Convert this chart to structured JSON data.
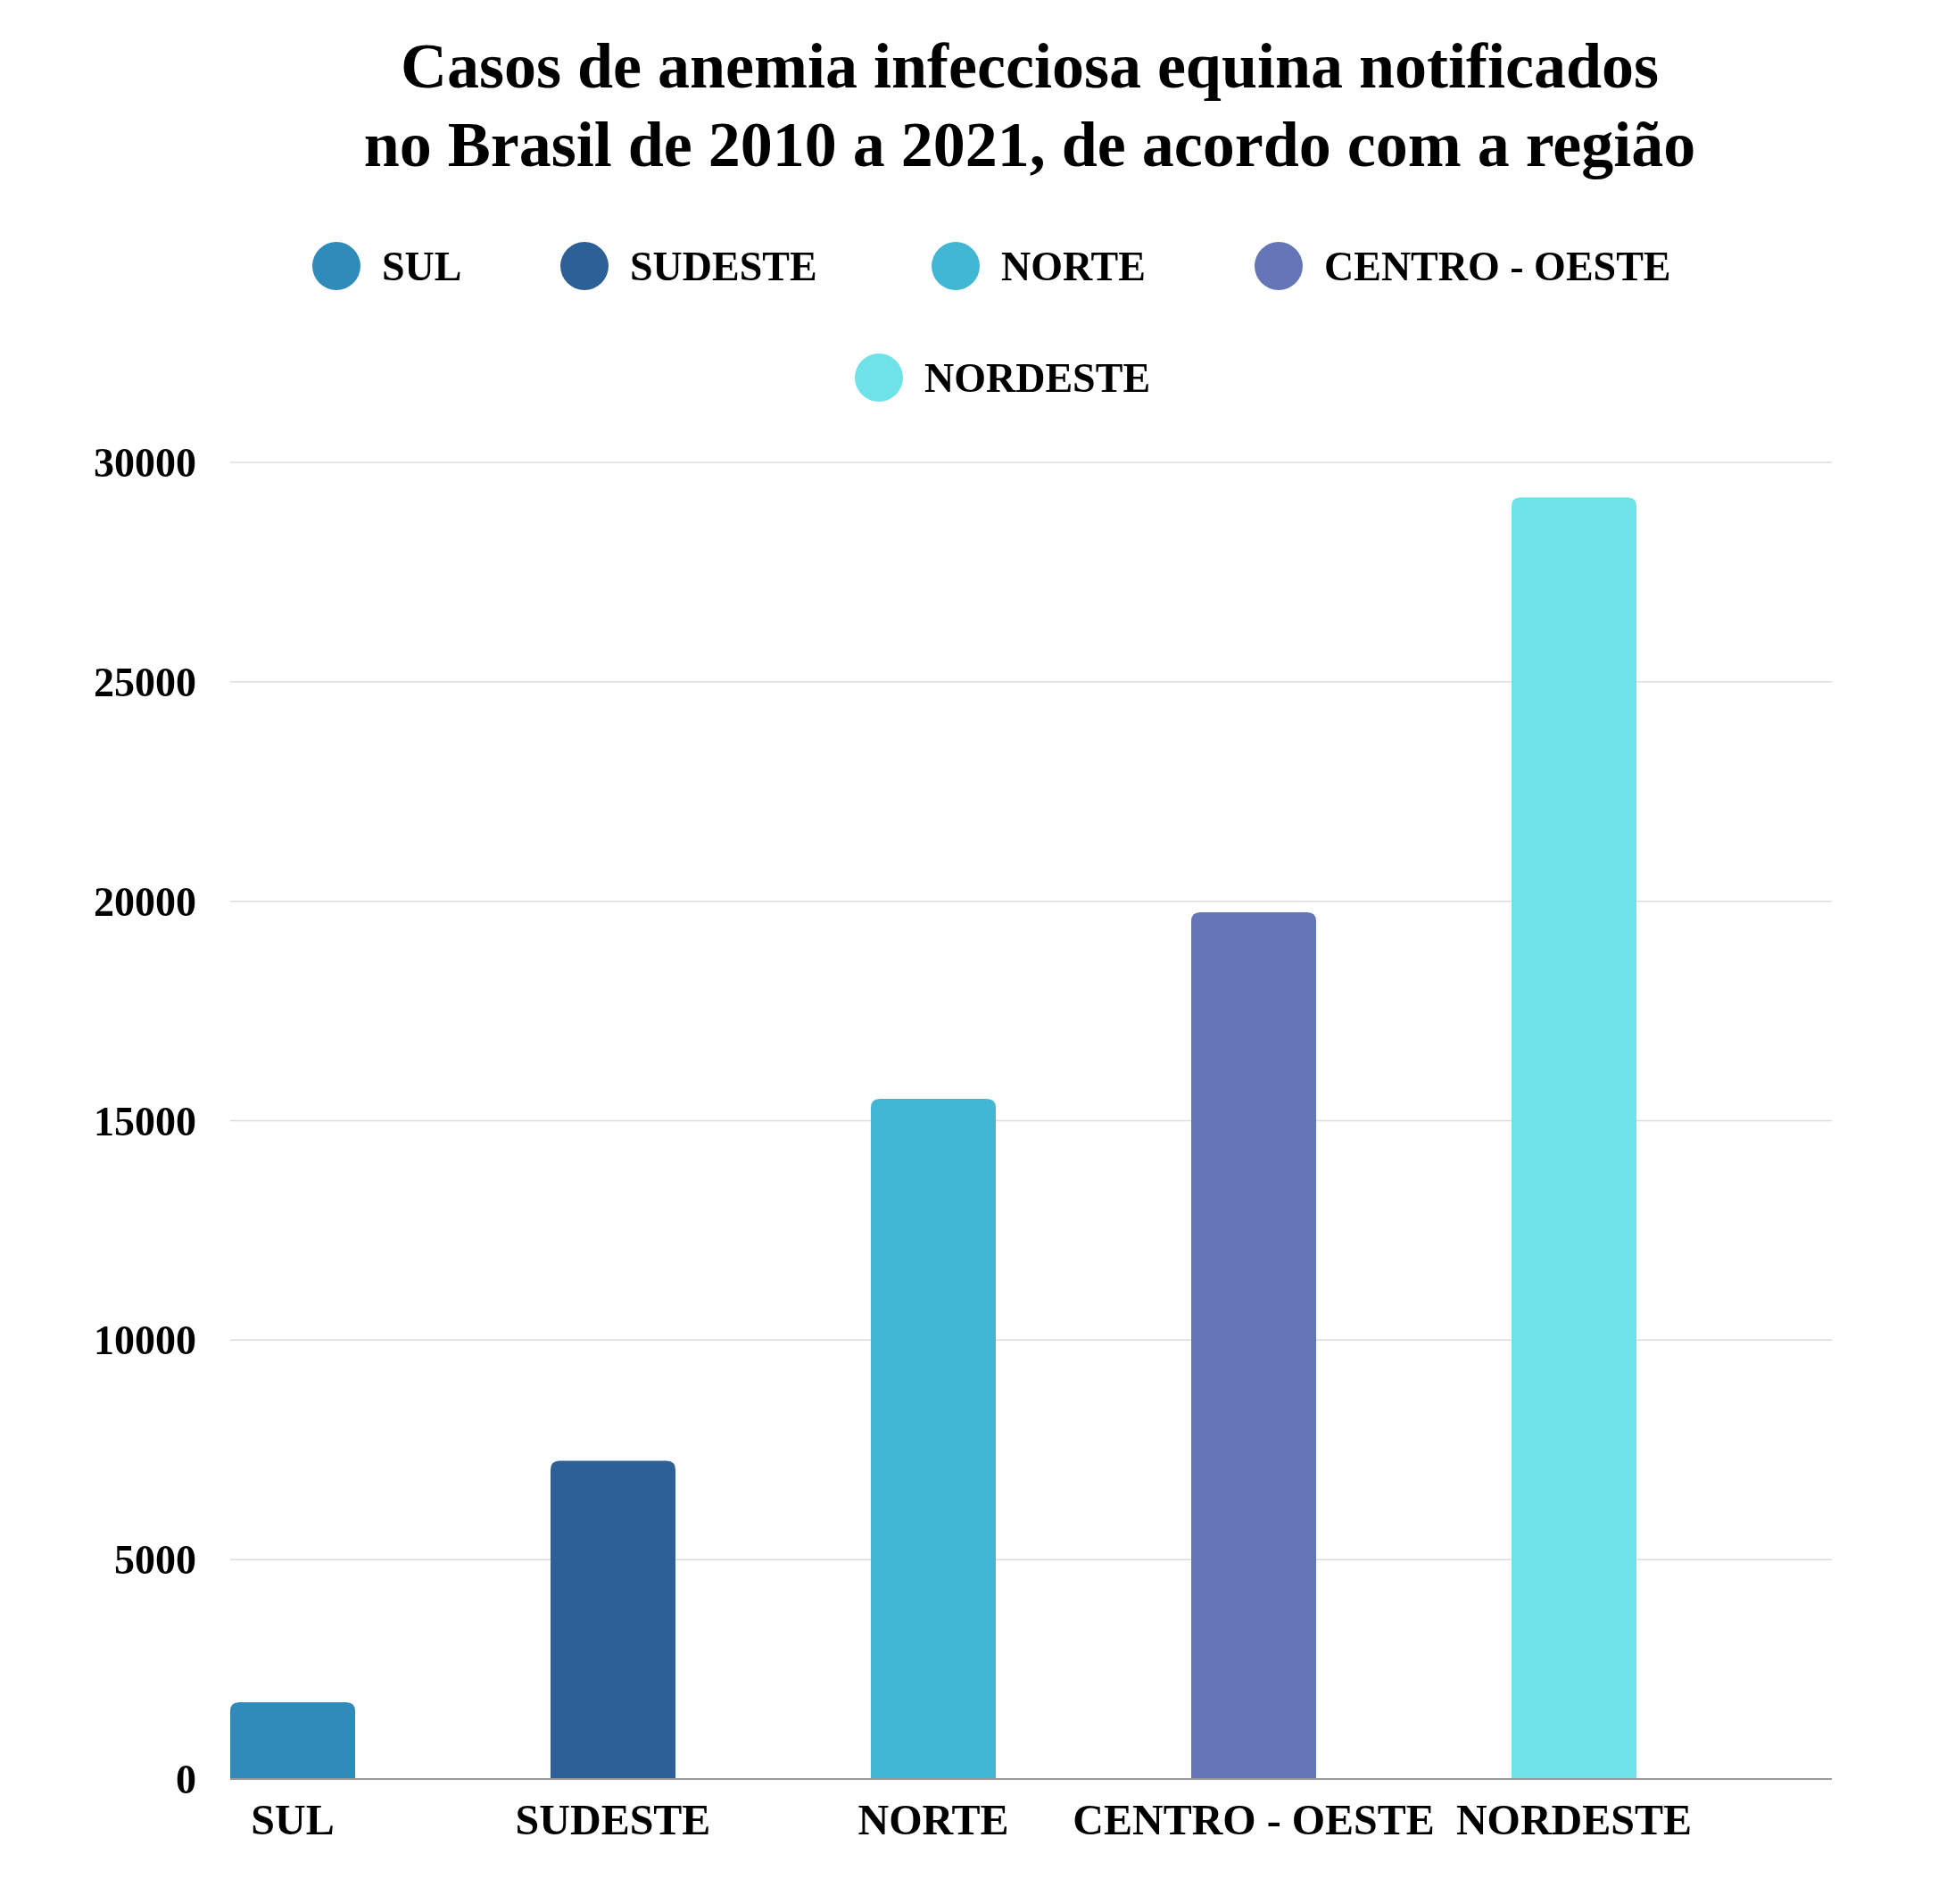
{
  "chart_data": {
    "type": "bar",
    "title": "Casos de anemia infecciosa equina notificados no Brasil de 2010 a 2021, de acordo com a região",
    "categories": [
      "SUL",
      "SUDESTE",
      "NORTE",
      "CENTRO - OESTE",
      "NORDESTE"
    ],
    "series": [
      {
        "name": "SUL",
        "color": "#2e8bba",
        "values": [
          1750,
          null,
          null,
          null,
          null
        ]
      },
      {
        "name": "SUDESTE",
        "color": "#2e6098",
        "values": [
          null,
          7250,
          null,
          null,
          null
        ]
      },
      {
        "name": "NORTE",
        "color": "#42b7d4",
        "values": [
          null,
          null,
          15500,
          null,
          null
        ]
      },
      {
        "name": "CENTRO - OESTE",
        "color": "#6476b8",
        "values": [
          null,
          null,
          null,
          19750,
          null
        ]
      },
      {
        "name": "NORDESTE",
        "color": "#6de3e8",
        "values": [
          null,
          null,
          null,
          null,
          29200
        ]
      }
    ],
    "ylim": [
      0,
      30000
    ],
    "yticks": [
      0,
      5000,
      10000,
      15000,
      20000,
      25000,
      30000
    ],
    "grid": "y",
    "legend": "top"
  }
}
